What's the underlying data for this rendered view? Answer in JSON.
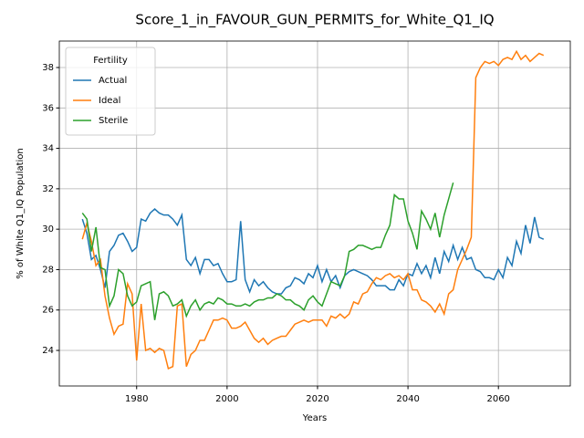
{
  "chart_data": {
    "type": "line",
    "title": "Score_1_in_FAVOUR_GUN_PERMITS_for_White_Q1_IQ",
    "xlabel": "Years",
    "ylabel": "% of White Q1_IQ Population",
    "legend_title": "Fertility",
    "legend": "upper left",
    "grid": true,
    "x": [
      1968,
      1969,
      1970,
      1971,
      1972,
      1973,
      1974,
      1975,
      1976,
      1977,
      1978,
      1979,
      1980,
      1981,
      1982,
      1983,
      1984,
      1985,
      1986,
      1987,
      1988,
      1989,
      1990,
      1991,
      1992,
      1993,
      1994,
      1995,
      1996,
      1997,
      1998,
      1999,
      2000,
      2001,
      2002,
      2003,
      2004,
      2005,
      2006,
      2007,
      2008,
      2009,
      2010,
      2011,
      2012,
      2013,
      2014,
      2015,
      2016,
      2017,
      2018,
      2019,
      2020,
      2021,
      2022,
      2023,
      2024,
      2025,
      2026,
      2027,
      2028,
      2029,
      2030,
      2031,
      2032,
      2033,
      2034,
      2035,
      2036,
      2037,
      2038,
      2039,
      2040,
      2041,
      2042,
      2043,
      2044,
      2045,
      2046,
      2047,
      2048,
      2049,
      2050,
      2051,
      2052,
      2053,
      2054,
      2055,
      2056,
      2057,
      2058,
      2059,
      2060,
      2061,
      2062,
      2063,
      2064,
      2065,
      2066,
      2067,
      2068,
      2069,
      2070
    ],
    "series": [
      {
        "name": "Actual",
        "color": "#1f77b4",
        "values": [
          30.5,
          29.8,
          28.5,
          28.7,
          28.0,
          27.1,
          28.9,
          29.2,
          29.7,
          29.8,
          29.4,
          28.9,
          29.1,
          30.5,
          30.4,
          30.8,
          31.0,
          30.8,
          30.7,
          30.7,
          30.5,
          30.2,
          30.7,
          28.5,
          28.2,
          28.6,
          27.8,
          28.5,
          28.5,
          28.2,
          28.3,
          27.8,
          27.4,
          27.4,
          27.5,
          30.4,
          27.5,
          26.9,
          27.5,
          27.2,
          27.4,
          27.1,
          26.9,
          26.8,
          26.8,
          27.1,
          27.2,
          27.6,
          27.5,
          27.3,
          27.8,
          27.6,
          28.2,
          27.4,
          28.0,
          27.4,
          27.7,
          27.1,
          27.7,
          27.9,
          28.0,
          27.9,
          27.8,
          27.7,
          27.5,
          27.2,
          27.2,
          27.2,
          27.0,
          27.0,
          27.5,
          27.2,
          27.8,
          27.7,
          28.3,
          27.8,
          28.2,
          27.6,
          28.6,
          27.8,
          28.9,
          28.4,
          29.2,
          28.5,
          29.1,
          28.5,
          28.6,
          28.0,
          27.9,
          27.6,
          27.6,
          27.5,
          28.0,
          27.6,
          28.6,
          28.2,
          29.4,
          28.8,
          30.2,
          29.3,
          30.6,
          29.6,
          29.5
        ]
      },
      {
        "name": "Ideal",
        "color": "#ff7f0e",
        "values": [
          29.5,
          30.3,
          29.4,
          28.2,
          28.5,
          26.7,
          25.6,
          24.8,
          25.2,
          25.3,
          27.3,
          26.8,
          23.5,
          26.3,
          24.0,
          24.1,
          23.9,
          24.1,
          24.0,
          23.1,
          23.2,
          26.2,
          26.3,
          23.2,
          23.8,
          24.0,
          24.5,
          24.5,
          25.0,
          25.5,
          25.5,
          25.6,
          25.5,
          25.1,
          25.1,
          25.2,
          25.4,
          25.0,
          24.6,
          24.4,
          24.6,
          24.3,
          24.5,
          24.6,
          24.7,
          24.7,
          25.0,
          25.3,
          25.4,
          25.5,
          25.4,
          25.5,
          25.5,
          25.5,
          25.2,
          25.7,
          25.6,
          25.8,
          25.6,
          25.8,
          26.4,
          26.3,
          26.8,
          26.9,
          27.3,
          27.6,
          27.5,
          27.7,
          27.8,
          27.6,
          27.7,
          27.5,
          27.8,
          27.0,
          27.0,
          26.5,
          26.4,
          26.2,
          25.9,
          26.3,
          25.8,
          26.8,
          27.0,
          28.0,
          28.5,
          29.0,
          29.6,
          37.5,
          38.0,
          38.3,
          38.2,
          38.3,
          38.1,
          38.4,
          38.5,
          38.4,
          38.8,
          38.4,
          38.6,
          38.3,
          38.5,
          38.7,
          38.6
        ]
      },
      {
        "name": "Sterile",
        "color": "#2ca02c",
        "values": [
          30.8,
          30.5,
          28.9,
          30.1,
          28.1,
          28.0,
          26.2,
          26.7,
          28.0,
          27.8,
          26.7,
          26.2,
          26.4,
          27.2,
          27.3,
          27.4,
          25.5,
          26.8,
          26.9,
          26.7,
          26.2,
          26.3,
          26.5,
          25.7,
          26.2,
          26.5,
          26.0,
          26.3,
          26.4,
          26.3,
          26.6,
          26.5,
          26.3,
          26.3,
          26.2,
          26.2,
          26.3,
          26.2,
          26.4,
          26.5,
          26.5,
          26.6,
          26.6,
          26.8,
          26.7,
          26.5,
          26.5,
          26.3,
          26.2,
          26.0,
          26.5,
          26.7,
          26.4,
          26.2,
          26.8,
          27.4,
          27.3,
          27.2,
          27.7,
          28.9,
          29.0,
          29.2,
          29.2,
          29.1,
          29.0,
          29.1,
          29.1,
          29.7,
          30.2,
          31.7,
          31.5,
          31.5,
          30.4,
          29.8,
          29.0,
          30.9,
          30.5,
          30.0,
          30.8,
          29.6,
          30.7,
          31.5,
          32.3,
          null,
          null,
          null,
          null,
          null,
          null,
          null,
          null,
          null,
          null,
          null,
          null,
          null,
          null,
          null,
          null,
          null,
          null,
          null,
          null
        ]
      }
    ],
    "xlim": [
      1962.9,
      2075.9
    ],
    "xticks": [
      1980,
      2000,
      2020,
      2040,
      2060
    ],
    "ylim": [
      22.24,
      39.31
    ],
    "yticks": [
      24,
      26,
      28,
      30,
      32,
      34,
      36,
      38
    ]
  }
}
